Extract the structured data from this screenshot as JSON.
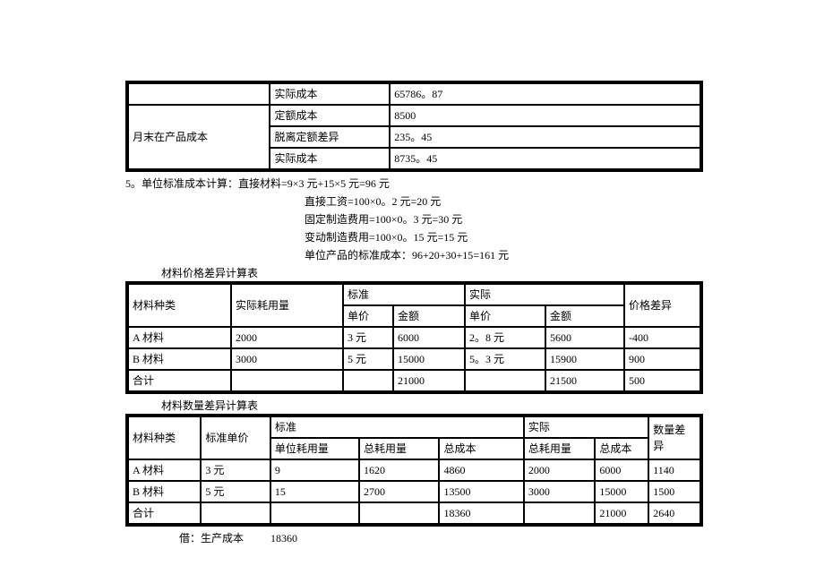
{
  "table1": {
    "rows": [
      {
        "c1": "",
        "c2": "实际成本",
        "c3": "65786。87"
      },
      {
        "c1": "月末在产品成本",
        "c2a": "定额成本",
        "c3a": "8500",
        "c2b": "脱离定额差异",
        "c3b": "235。45",
        "c2c": "实际成本",
        "c3c": "8735。45"
      }
    ]
  },
  "calc_lines": {
    "l1": "5。单位标准成本计算：直接材料=9×3 元+15×5 元=96 元",
    "l2": "直接工资=100×0。2 元=20 元",
    "l3": "固定制造费用=100×0。3 元=30 元",
    "l4": "变动制造费用=100×0。15 元=15 元",
    "l5": "单位产品的标准成本：96+20+30+15=161 元"
  },
  "table2": {
    "caption": "材料价格差异计算表",
    "header1": {
      "c1": "材料种类",
      "c2": "实际耗用量",
      "std": "标准",
      "act": "实际",
      "diff": "价格差异"
    },
    "header2": {
      "c3": "单价",
      "c4": "金额",
      "c5": "单价",
      "c6": "金额"
    },
    "rows": [
      [
        "A 材料",
        "2000",
        "3 元",
        "6000",
        "2。8 元",
        "5600",
        "-400"
      ],
      [
        "B 材料",
        "3000",
        "5 元",
        "15000",
        "5。3 元",
        "15900",
        "900"
      ],
      [
        "合计",
        "",
        "",
        "21000",
        "",
        "21500",
        "500"
      ]
    ]
  },
  "table3": {
    "caption": "材料数量差异计算表",
    "header1": {
      "c1": "材料种类",
      "c2": "标准单价",
      "std": "标准",
      "act": "实际",
      "diff": "数量差异"
    },
    "header2": {
      "c3": "单位耗用量",
      "c4": "总耗用量",
      "c5": "总成本",
      "c6": "总耗用量",
      "c7": "总成本"
    },
    "rows": [
      [
        "A 材料",
        "3 元",
        "9",
        "1620",
        "4860",
        "2000",
        "6000",
        "1140"
      ],
      [
        "B 材料",
        "5 元",
        "15",
        "2700",
        "13500",
        "3000",
        "15000",
        "1500"
      ],
      [
        "合计",
        "",
        "",
        "",
        "18360",
        "",
        "21000",
        "2640"
      ]
    ]
  },
  "footer": "借：生产成本          18360"
}
